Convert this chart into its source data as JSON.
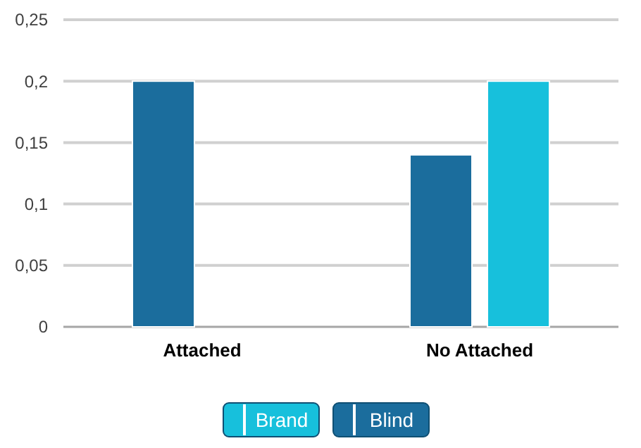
{
  "chart_data": {
    "type": "bar",
    "categories": [
      "Attached",
      "No Attached"
    ],
    "series": [
      {
        "name": "Blind",
        "color": "#1b6d9d",
        "values": [
          0.2,
          0.14
        ]
      },
      {
        "name": "Brand",
        "color": "#17c0dc",
        "values": [
          null,
          0.2
        ]
      }
    ],
    "ylim": [
      0,
      0.25
    ],
    "yticks": [
      0,
      {
        "value": 0.05,
        "label": "0,05"
      },
      {
        "value": 0.1,
        "label": "0,1"
      },
      {
        "value": 0.15,
        "label": "0,15"
      },
      {
        "value": 0.2,
        "label": "0,2"
      },
      {
        "value": 0.25,
        "label": "0,25"
      }
    ],
    "grid": "y",
    "legend": "bottom"
  }
}
